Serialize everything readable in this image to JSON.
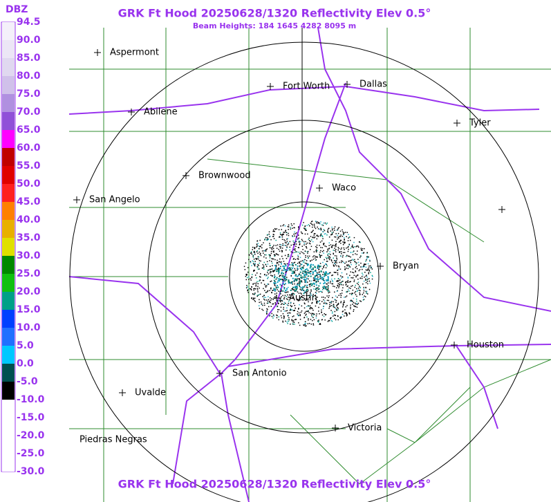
{
  "header": {
    "title": "GRK Ft Hood 20250628/1320 Reflectivity Elev 0.5°",
    "subtitle": "Beam Heights: 184 1645 4282 8095 m"
  },
  "legend": {
    "title": "DBZ",
    "labels": [
      "94.5",
      "90.0",
      "85.0",
      "80.0",
      "75.0",
      "70.0",
      "65.0",
      "60.0",
      "55.0",
      "50.0",
      "45.0",
      "40.0",
      "35.0",
      "30.0",
      "25.0",
      "20.0",
      "15.0",
      "10.0",
      "5.0",
      "0.0",
      "-5.0",
      "-10.0",
      "-15.0",
      "-20.0",
      "-25.0",
      "-30.0"
    ]
  },
  "cities": [
    "Aspermont",
    "Fort Worth",
    "Dallas",
    "Abilene",
    "Tyler",
    "Brownwood",
    "Waco",
    "San Angelo",
    "Bryan",
    "Austin",
    "Houston",
    "San Antonio",
    "Uvalde",
    "Victoria",
    "Piedras Negras"
  ],
  "footer": {
    "title": "GRK Ft Hood 20250628/1320 Reflectivity Elev 0.5°"
  }
}
